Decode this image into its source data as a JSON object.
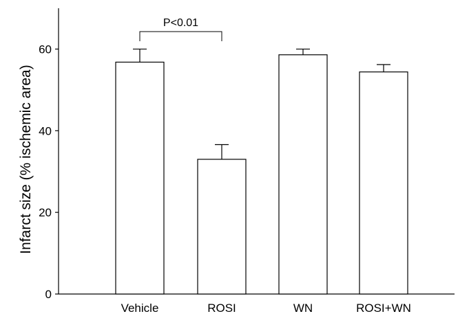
{
  "chart_data": {
    "type": "bar",
    "title": "",
    "xlabel": "",
    "ylabel": "Infarct size (% ischemic area)",
    "ylim": [
      0,
      70
    ],
    "yticks": [
      0,
      20,
      40,
      60
    ],
    "categories": [
      "Vehicle",
      "ROSI",
      "WN",
      "ROSI+WN"
    ],
    "values": [
      56.8,
      33.0,
      58.6,
      54.4
    ],
    "errors": [
      3.2,
      3.6,
      1.4,
      1.8
    ],
    "grid": false,
    "bar_fill": "#ffffff",
    "bar_stroke": "#000000",
    "annotation": {
      "text": "P<0.01",
      "from_category": "Vehicle",
      "to_category": "ROSI"
    }
  }
}
